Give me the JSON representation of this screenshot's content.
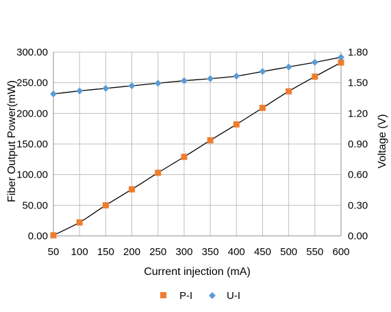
{
  "chart_data": {
    "type": "scatter",
    "title": "",
    "xlabel": "Current injection (mA)",
    "ylabel": "Fiber Output Power(mW)",
    "y2label": "Voltage (V)",
    "x": [
      50,
      100,
      150,
      200,
      250,
      300,
      350,
      400,
      450,
      500,
      550,
      600
    ],
    "xlim": [
      50,
      600
    ],
    "ylim": [
      0,
      300
    ],
    "y2lim": [
      0,
      1.8
    ],
    "x_ticks": [
      "50",
      "100",
      "150",
      "200",
      "250",
      "300",
      "350",
      "400",
      "450",
      "500",
      "550",
      "600"
    ],
    "y_ticks": [
      "0.00",
      "50.00",
      "100.00",
      "150.00",
      "200.00",
      "250.00",
      "300.00"
    ],
    "y2_ticks": [
      "0.00",
      "0.30",
      "0.60",
      "0.90",
      "1.20",
      "1.50",
      "1.80"
    ],
    "grid": "vertical",
    "legend_position": "bottom",
    "series": [
      {
        "name": "P-I",
        "axis": "left",
        "marker": "square",
        "color": "#ED7D31",
        "values": [
          1,
          22,
          50,
          76,
          103,
          129,
          156,
          182,
          209,
          236,
          260,
          283
        ]
      },
      {
        "name": "U-I",
        "axis": "right",
        "marker": "diamond",
        "color": "#5B9BD5",
        "values": [
          1.39,
          1.42,
          1.445,
          1.47,
          1.495,
          1.52,
          1.54,
          1.565,
          1.61,
          1.655,
          1.7,
          1.75
        ]
      }
    ],
    "trendline_color": "#000000"
  }
}
